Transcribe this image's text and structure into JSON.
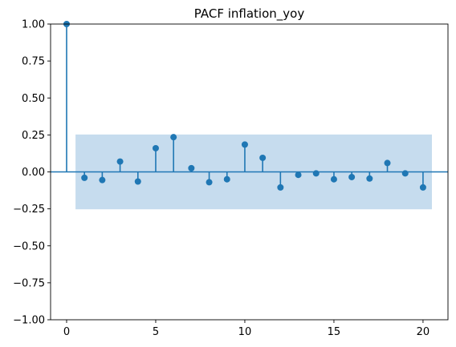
{
  "chart_data": {
    "type": "scatter",
    "subtype": "stem",
    "title": "PACF inflation_yoy",
    "xlabel": "",
    "ylabel": "",
    "xlim": [
      -0.9,
      21.4
    ],
    "ylim": [
      -1.0,
      1.0
    ],
    "xticks": [
      0,
      5,
      10,
      15,
      20
    ],
    "yticks": [
      -1.0,
      -0.75,
      -0.5,
      -0.25,
      0.0,
      0.25,
      0.5,
      0.75,
      1.0
    ],
    "xtick_labels": [
      "0",
      "5",
      "10",
      "15",
      "20"
    ],
    "ytick_labels": [
      "−1.00",
      "−0.75",
      "−0.50",
      "−0.25",
      "0.00",
      "0.25",
      "0.50",
      "0.75",
      "1.00"
    ],
    "grid": false,
    "legend": "none",
    "confidence_band": {
      "x": [
        0.5,
        20.5
      ],
      "lower": -0.253,
      "upper": 0.253
    },
    "series": [
      {
        "x": [
          0,
          1,
          2,
          3,
          4,
          5,
          6,
          7,
          8,
          9,
          10,
          11,
          12,
          13,
          14,
          15,
          16,
          17,
          18,
          19,
          20
        ],
        "values": [
          1.0,
          -0.04,
          -0.055,
          0.07,
          -0.065,
          0.16,
          0.235,
          0.025,
          -0.07,
          -0.05,
          0.185,
          0.095,
          -0.105,
          -0.02,
          -0.01,
          -0.05,
          -0.035,
          -0.045,
          0.06,
          -0.01,
          -0.105
        ]
      }
    ],
    "colors": {
      "stem": "#1f77b4",
      "band": "#c6dcee",
      "zero_line": "#1f77b4",
      "axes": "#000000"
    }
  }
}
